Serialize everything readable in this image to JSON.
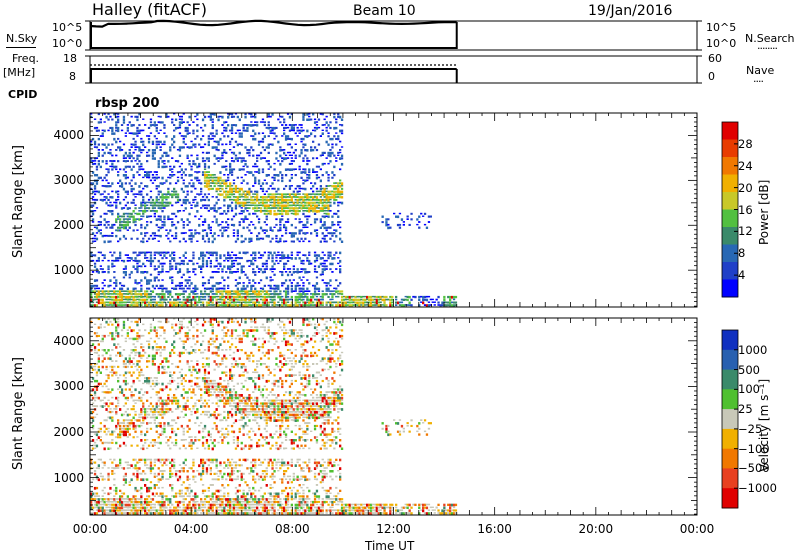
{
  "header": {
    "radar": "Halley (fitACF)",
    "beam": "Beam 10",
    "date": "19/Jan/2016"
  },
  "top_panels": {
    "nsky_label": "N.Sky",
    "nsearch_label": "N.Search",
    "nsearch_dots": "........",
    "noise_ticks": [
      "10^5",
      "10^0"
    ],
    "freq_label": "Freq.",
    "freq_unit": "[MHz]",
    "freq_ticks": [
      "18",
      "8"
    ],
    "nave_label": "Nave",
    "nave_dots": "....",
    "nave_ticks": [
      "60",
      "0"
    ],
    "cpid_label": "CPID",
    "cpid_value": "rbsp 200"
  },
  "chart_data": [
    {
      "type": "heatmap",
      "name": "power",
      "ylabel": "Slant Range [km]",
      "xlabel": "",
      "x_ticks": [
        "00:00",
        "04:00",
        "08:00",
        "12:00",
        "16:00",
        "20:00",
        "00:00"
      ],
      "x_range_hours": [
        0,
        24
      ],
      "y_ticks": [
        1000,
        2000,
        3000,
        4000
      ],
      "y_range_km": [
        180,
        4500
      ],
      "data_extent_hours": [
        0,
        14.5
      ],
      "colorbar": {
        "label": "Power [dB]",
        "ticks": [
          "4",
          "8",
          "12",
          "16",
          "20",
          "24",
          "28"
        ],
        "colors": [
          "#0000ff",
          "#2040c8",
          "#2868b4",
          "#3a8a6a",
          "#52c040",
          "#c8c828",
          "#f0b000",
          "#f07800",
          "#e83c00",
          "#e00000"
        ]
      }
    },
    {
      "type": "heatmap",
      "name": "velocity",
      "ylabel": "Slant Range [km]",
      "xlabel": "Time UT",
      "x_ticks": [
        "00:00",
        "04:00",
        "08:00",
        "12:00",
        "16:00",
        "20:00",
        "00:00"
      ],
      "x_range_hours": [
        0,
        24
      ],
      "y_ticks": [
        1000,
        2000,
        3000,
        4000
      ],
      "y_range_km": [
        180,
        4500
      ],
      "data_extent_hours": [
        0,
        14.5
      ],
      "colorbar": {
        "label": "Velocity [m s⁻¹]",
        "ticks": [
          "1000",
          "500",
          "100",
          "25",
          "−25",
          "−100",
          "−500",
          "−1000"
        ],
        "colors": [
          "#1030c0",
          "#2860b0",
          "#3a8a6a",
          "#50c030",
          "#c8c8b8",
          "#f0b000",
          "#f07800",
          "#e84020",
          "#e00000"
        ]
      }
    }
  ]
}
